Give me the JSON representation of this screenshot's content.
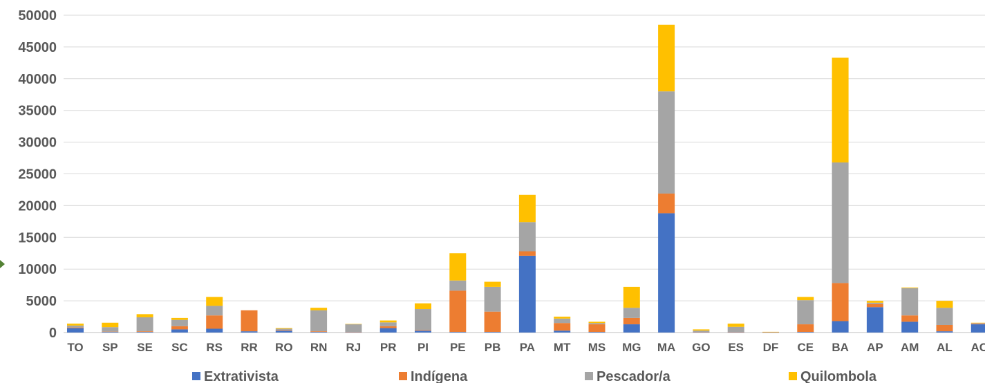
{
  "chart_data": {
    "type": "bar",
    "stacked": true,
    "title": "",
    "xlabel": "",
    "ylabel": "",
    "ylim": [
      0,
      50000
    ],
    "yticks": [
      "0",
      "5000",
      "10000",
      "15000",
      "20000",
      "25000",
      "30000",
      "35000",
      "40000",
      "45000",
      "50000"
    ],
    "grid": true,
    "legend_position": "bottom",
    "categories": [
      "TO",
      "SP",
      "SE",
      "SC",
      "RS",
      "RR",
      "RO",
      "RN",
      "RJ",
      "PR",
      "PI",
      "PE",
      "PB",
      "PA",
      "MT",
      "MS",
      "MG",
      "MA",
      "GO",
      "ES",
      "DF",
      "CE",
      "BA",
      "AP",
      "AM",
      "AL",
      "AC"
    ],
    "series": [
      {
        "name": "Extrativista",
        "color": "#4472C4",
        "values": [
          700,
          100,
          100,
          500,
          600,
          200,
          300,
          100,
          50,
          700,
          300,
          100,
          100,
          12100,
          300,
          100,
          1300,
          18800,
          50,
          50,
          20,
          100,
          1800,
          4000,
          1700,
          200,
          1300
        ]
      },
      {
        "name": "Indígena",
        "color": "#ED7D31",
        "values": [
          100,
          50,
          100,
          500,
          2100,
          3300,
          100,
          100,
          50,
          300,
          100,
          6500,
          3200,
          700,
          1200,
          1200,
          1000,
          3100,
          50,
          50,
          50,
          1200,
          6000,
          500,
          1000,
          1000,
          100
        ]
      },
      {
        "name": "Pescador/a",
        "color": "#A5A5A5",
        "values": [
          300,
          700,
          2200,
          1000,
          1500,
          0,
          200,
          3300,
          1200,
          600,
          3300,
          1600,
          3900,
          4600,
          700,
          200,
          1600,
          16100,
          200,
          800,
          0,
          3800,
          19000,
          200,
          4300,
          2700,
          100
        ]
      },
      {
        "name": "Quilombola",
        "color": "#FFC000",
        "values": [
          300,
          700,
          500,
          300,
          1400,
          0,
          100,
          400,
          50,
          300,
          900,
          4300,
          800,
          4300,
          300,
          200,
          3300,
          10500,
          200,
          500,
          50,
          500,
          16500,
          300,
          100,
          1100,
          50
        ]
      }
    ]
  }
}
